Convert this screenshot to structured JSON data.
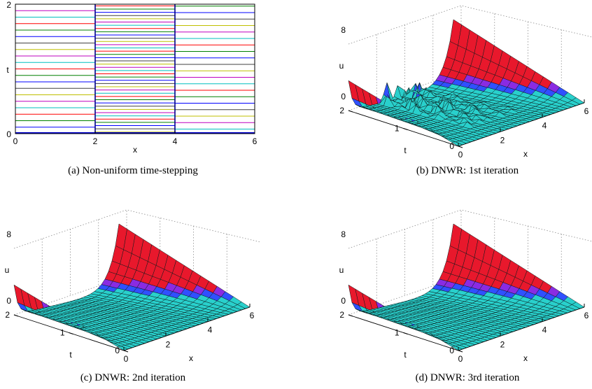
{
  "colors": {
    "surface_high": "#e8182c",
    "surface_low": "#29d0cc",
    "mesh": "#0c1a1a",
    "purple": "#8a2be2",
    "blue": "#3050ff"
  },
  "chart_data": [
    {
      "id": "a",
      "type": "line",
      "caption": "(a) Non-uniform time-stepping",
      "xlabel": "x",
      "ylabel": "t",
      "xlim": [
        0,
        6
      ],
      "ylim": [
        0,
        2
      ],
      "xticks": [
        "0",
        "2",
        "4",
        "6"
      ],
      "yticks": [
        "0",
        "2"
      ],
      "subdomains": [
        {
          "x": [
            0,
            2
          ],
          "dt": 0.1
        },
        {
          "x": [
            2,
            4
          ],
          "dt": 0.05
        },
        {
          "x": [
            4,
            6
          ],
          "dt": 0.1
        }
      ]
    },
    {
      "id": "b",
      "type": "surface",
      "caption": "(b) DNWR: 1st iteration",
      "xlabel": "x",
      "ylabel": "t",
      "zlabel": "u",
      "xticks": [
        "0",
        "2",
        "4",
        "6"
      ],
      "yticks": [
        "0",
        "1",
        "2"
      ],
      "zticks": [
        "0",
        "8"
      ],
      "oscillation": true
    },
    {
      "id": "c",
      "type": "surface",
      "caption": "(c) DNWR: 2nd iteration",
      "xlabel": "x",
      "ylabel": "t",
      "zlabel": "u",
      "xticks": [
        "0",
        "2",
        "4",
        "6"
      ],
      "yticks": [
        "0",
        "1",
        "2"
      ],
      "zticks": [
        "0",
        "8"
      ],
      "oscillation": false
    },
    {
      "id": "d",
      "type": "surface",
      "caption": "(d) DNWR: 3rd iteration",
      "xlabel": "x",
      "ylabel": "t",
      "zlabel": "u",
      "xticks": [
        "0",
        "2",
        "4",
        "6"
      ],
      "yticks": [
        "0",
        "1",
        "2"
      ],
      "zticks": [
        "0",
        "8"
      ],
      "oscillation": false
    }
  ]
}
